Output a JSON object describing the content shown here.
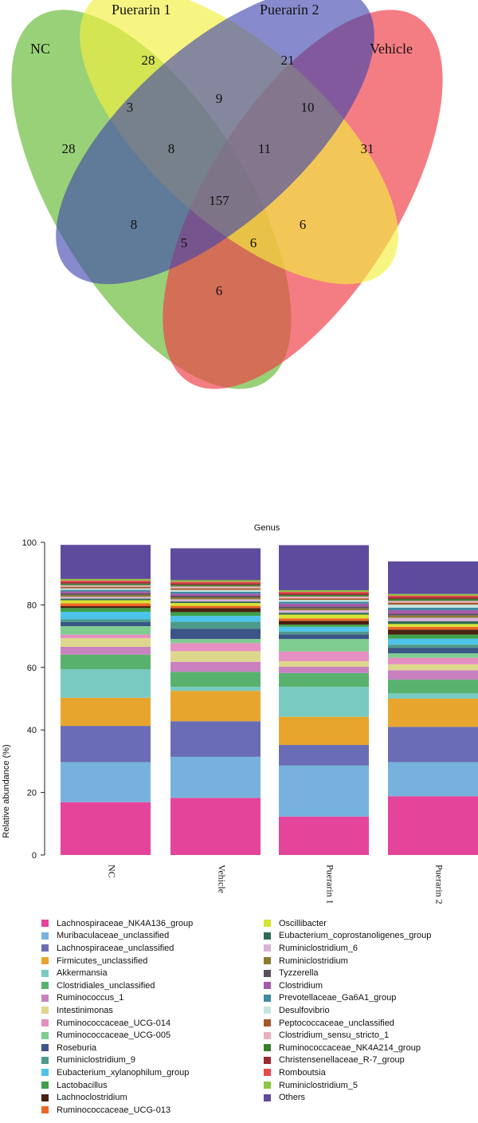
{
  "chart_data": [
    {
      "type": "venn",
      "sets": [
        {
          "name": "NC",
          "color": "#72bf44"
        },
        {
          "name": "Puerarin 1",
          "color": "#f2ef3f"
        },
        {
          "name": "Puerarin 2",
          "color": "#3d44ae"
        },
        {
          "name": "Vehicle",
          "color": "#ef3f48"
        }
      ],
      "regions": [
        {
          "sets": [
            "Puerarin 1"
          ],
          "value": 28
        },
        {
          "sets": [
            "Puerarin 2"
          ],
          "value": 21
        },
        {
          "sets": [
            "NC"
          ],
          "value": 28
        },
        {
          "sets": [
            "Vehicle"
          ],
          "value": 31
        },
        {
          "sets": [
            "NC",
            "Puerarin 1"
          ],
          "value": 3
        },
        {
          "sets": [
            "Puerarin 1",
            "Puerarin 2"
          ],
          "value": 9
        },
        {
          "sets": [
            "Puerarin 2",
            "Vehicle"
          ],
          "value": 10
        },
        {
          "sets": [
            "NC",
            "Puerarin 1",
            "Puerarin 2"
          ],
          "value": 8
        },
        {
          "sets": [
            "Puerarin 1",
            "Puerarin 2",
            "Vehicle"
          ],
          "value": 11
        },
        {
          "sets": [
            "NC",
            "Puerarin 1",
            "Puerarin 2",
            "Vehicle"
          ],
          "value": 157
        },
        {
          "sets": [
            "NC",
            "Puerarin 2"
          ],
          "value": 8
        },
        {
          "sets": [
            "Puerarin 1",
            "Vehicle"
          ],
          "value": 6
        },
        {
          "sets": [
            "NC",
            "Puerarin 2",
            "Vehicle"
          ],
          "value": 5
        },
        {
          "sets": [
            "NC",
            "Puerarin 1",
            "Vehicle"
          ],
          "value": 6
        },
        {
          "sets": [
            "NC",
            "Vehicle"
          ],
          "value": 6
        }
      ]
    },
    {
      "type": "stacked_bar",
      "title": "Genus",
      "ylabel": "Relative abundance (%)",
      "ylim": [
        0,
        100
      ],
      "yticks": [
        0,
        20,
        40,
        60,
        80,
        100
      ],
      "categories": [
        "NC",
        "Vehicle",
        "Puerarin 1",
        "Puerarin 2"
      ],
      "series": [
        {
          "name": "Lachnospiraceae_NK4A136_group",
          "color": "#e4449a",
          "values": [
            16.9,
            18.3,
            12.3,
            18.8
          ]
        },
        {
          "name": "Muribaculaceae_unclassified",
          "color": "#76b2dd",
          "values": [
            12.8,
            13.1,
            16.3,
            10.9
          ]
        },
        {
          "name": "Lachnospiraceae_unclassified",
          "color": "#6a6db6",
          "values": [
            11.6,
            11.4,
            6.6,
            11.3
          ]
        },
        {
          "name": "Firmicutes_unclassified",
          "color": "#e8a52d",
          "values": [
            9.0,
            9.7,
            9.0,
            9.0
          ]
        },
        {
          "name": "Akkermansia",
          "color": "#79cbc1",
          "values": [
            9.1,
            1.3,
            9.6,
            1.7
          ]
        },
        {
          "name": "Clostridiales_unclassified",
          "color": "#58b26e",
          "values": [
            4.7,
            4.8,
            4.4,
            4.4
          ]
        },
        {
          "name": "Ruminococcus_1",
          "color": "#c981c0",
          "values": [
            2.5,
            3.2,
            2.0,
            3.0
          ]
        },
        {
          "name": "Intestinimonas",
          "color": "#dfd68e",
          "values": [
            2.8,
            3.4,
            1.8,
            1.9
          ]
        },
        {
          "name": "Ruminococcaceae_UCG-014",
          "color": "#e58fc2",
          "values": [
            1.1,
            2.6,
            3.1,
            2.1
          ]
        },
        {
          "name": "Ruminococcaceae_UCG-005",
          "color": "#7fcd91",
          "values": [
            2.7,
            1.3,
            4.0,
            1.4
          ]
        },
        {
          "name": "Roseburia",
          "color": "#3b5586",
          "values": [
            1.3,
            3.3,
            1.5,
            1.8
          ]
        },
        {
          "name": "Ruminiclostridium_9",
          "color": "#4e9a8c",
          "values": [
            0.9,
            2.2,
            0.9,
            1.0
          ]
        },
        {
          "name": "Eubacterium_xylanophilum_group",
          "color": "#4ec3e9",
          "values": [
            2.4,
            1.9,
            1.5,
            1.9
          ]
        },
        {
          "name": "Lactobacillus",
          "color": "#3ea04a",
          "values": [
            1.2,
            1.2,
            0.7,
            1.3
          ]
        },
        {
          "name": "Lachnoclostridium",
          "color": "#4a2111",
          "values": [
            0.6,
            1.3,
            1.2,
            1.6
          ]
        },
        {
          "name": "Ruminococcaceae_UCG-013",
          "color": "#ec6726",
          "values": [
            0.9,
            0.7,
            0.8,
            0.9
          ]
        },
        {
          "name": "Oscillibacter",
          "color": "#d6e435",
          "values": [
            1.0,
            0.9,
            1.2,
            0.9
          ]
        },
        {
          "name": "Eubacterium_coprostanoligenes_group",
          "color": "#2f6a53",
          "values": [
            0.5,
            0.5,
            0.6,
            0.9
          ]
        },
        {
          "name": "Ruminiclostridium_6",
          "color": "#d6b3d8",
          "values": [
            0.6,
            0.7,
            0.8,
            1.1
          ]
        },
        {
          "name": "Ruminiclostridium",
          "color": "#8c7a2e",
          "values": [
            0.6,
            0.6,
            0.6,
            0.7
          ]
        },
        {
          "name": "Tyzzerella",
          "color": "#5a4e5e",
          "values": [
            0.5,
            0.5,
            0.6,
            0.6
          ]
        },
        {
          "name": "Clostridium",
          "color": "#a659a8",
          "values": [
            0.6,
            0.7,
            0.9,
            1.1
          ]
        },
        {
          "name": "Prevotellaceae_Ga6A1_group",
          "color": "#3b8ba4",
          "values": [
            0.5,
            0.6,
            0.6,
            0.8
          ]
        },
        {
          "name": "Desulfovibrio",
          "color": "#c6e4e0",
          "values": [
            0.5,
            0.6,
            0.6,
            1.0
          ]
        },
        {
          "name": "Peptococcaceae_unclassified",
          "color": "#a35a2a",
          "values": [
            0.5,
            0.5,
            0.5,
            0.6
          ]
        },
        {
          "name": "Clostridium_sensu_stricto_1",
          "color": "#e9b1bd",
          "values": [
            0.5,
            0.6,
            0.6,
            0.6
          ]
        },
        {
          "name": "Ruminococcaceae_NK4A214_group",
          "color": "#3a7d2e",
          "values": [
            0.5,
            0.5,
            0.5,
            0.6
          ]
        },
        {
          "name": "Christensenellaceae_R-7_group",
          "color": "#9b2a2e",
          "values": [
            0.5,
            0.5,
            0.5,
            0.6
          ]
        },
        {
          "name": "Romboutsia",
          "color": "#e8474d",
          "values": [
            0.5,
            0.5,
            0.5,
            0.5
          ]
        },
        {
          "name": "Ruminiclostridium_5",
          "color": "#8dc63f",
          "values": [
            0.5,
            0.5,
            0.5,
            0.5
          ]
        },
        {
          "name": "Others",
          "color": "#5f4b9e",
          "values": [
            10.9,
            10.2,
            14.4,
            10.4
          ]
        }
      ]
    }
  ]
}
